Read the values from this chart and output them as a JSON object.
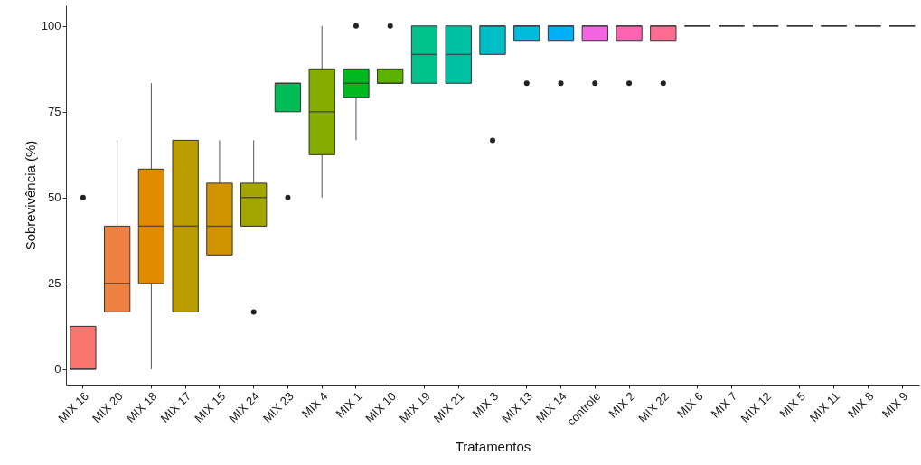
{
  "chart_data": {
    "type": "box",
    "xlabel": "Tratamentos",
    "ylabel": "Sobrevivência (%)",
    "categories": [
      "MIX 16",
      "MIX 20",
      "MIX 18",
      "MIX 17",
      "MIX 15",
      "MIX 24",
      "MIX 23",
      "MIX 4",
      "MIX 1",
      "MIX 10",
      "MIX 19",
      "MIX 21",
      "MIX 3",
      "MIX 13",
      "MIX 14",
      "controle",
      "MIX 2",
      "MIX 22",
      "MIX 6",
      "MIX 7",
      "MIX 12",
      "MIX 5",
      "MIX 11",
      "MIX 8",
      "MIX 9"
    ],
    "colors": [
      "#f8766d",
      "#ed8141",
      "#e08b00",
      "#bb9d00",
      "#cf9400",
      "#a3a500",
      "#00bc56",
      "#85ad00",
      "#00b81f",
      "#5bb300",
      "#00c08b",
      "#00c1a3",
      "#00bfc4",
      "#00bbdb",
      "#00b0f6",
      "#f564e3",
      "#ff64b0",
      "#ff6c91",
      "#333333",
      "#333333",
      "#333333",
      "#333333",
      "#333333",
      "#333333",
      "#333333"
    ],
    "boxes": [
      {
        "low": 0,
        "q1": 0,
        "median": 0,
        "q3": 12.5,
        "high": 12.5,
        "outliers": [
          50
        ]
      },
      {
        "low": 16.7,
        "q1": 16.7,
        "median": 25,
        "q3": 41.7,
        "high": 66.7
      },
      {
        "low": 0,
        "q1": 25,
        "median": 41.7,
        "q3": 58.3,
        "high": 83.3
      },
      {
        "low": 16.7,
        "q1": 16.7,
        "median": 41.7,
        "q3": 66.7,
        "high": 66.7
      },
      {
        "low": 33.3,
        "q1": 33.3,
        "median": 41.7,
        "q3": 54.2,
        "high": 66.7
      },
      {
        "low": 41.7,
        "q1": 41.7,
        "median": 50,
        "q3": 54.2,
        "high": 66.7,
        "outliers": [
          16.7
        ]
      },
      {
        "low": 75,
        "q1": 75,
        "median": 83.3,
        "q3": 83.3,
        "high": 83.3,
        "outliers": [
          50
        ]
      },
      {
        "low": 50,
        "q1": 62.5,
        "median": 75,
        "q3": 87.5,
        "high": 100
      },
      {
        "low": 66.7,
        "q1": 79.2,
        "median": 83.3,
        "q3": 87.5,
        "high": 87.5,
        "outliers": [
          100
        ]
      },
      {
        "low": 83.3,
        "q1": 83.3,
        "median": 83.3,
        "q3": 87.5,
        "high": 87.5,
        "outliers": [
          100
        ]
      },
      {
        "low": 83.3,
        "q1": 83.3,
        "median": 91.7,
        "q3": 100,
        "high": 100
      },
      {
        "low": 83.3,
        "q1": 83.3,
        "median": 91.7,
        "q3": 100,
        "high": 100
      },
      {
        "low": 91.7,
        "q1": 91.7,
        "median": 100,
        "q3": 100,
        "high": 100,
        "outliers": [
          66.7
        ]
      },
      {
        "low": 95.8,
        "q1": 95.8,
        "median": 100,
        "q3": 100,
        "high": 100,
        "outliers": [
          83.3
        ]
      },
      {
        "low": 95.8,
        "q1": 95.8,
        "median": 100,
        "q3": 100,
        "high": 100,
        "outliers": [
          83.3
        ]
      },
      {
        "low": 95.8,
        "q1": 95.8,
        "median": 100,
        "q3": 100,
        "high": 100,
        "outliers": [
          83.3
        ]
      },
      {
        "low": 95.8,
        "q1": 95.8,
        "median": 100,
        "q3": 100,
        "high": 100,
        "outliers": [
          83.3
        ]
      },
      {
        "low": 95.8,
        "q1": 95.8,
        "median": 100,
        "q3": 100,
        "high": 100,
        "outliers": [
          83.3
        ]
      },
      {
        "low": 100,
        "q1": 100,
        "median": 100,
        "q3": 100,
        "high": 100
      },
      {
        "low": 100,
        "q1": 100,
        "median": 100,
        "q3": 100,
        "high": 100
      },
      {
        "low": 100,
        "q1": 100,
        "median": 100,
        "q3": 100,
        "high": 100
      },
      {
        "low": 100,
        "q1": 100,
        "median": 100,
        "q3": 100,
        "high": 100
      },
      {
        "low": 100,
        "q1": 100,
        "median": 100,
        "q3": 100,
        "high": 100
      },
      {
        "low": 100,
        "q1": 100,
        "median": 100,
        "q3": 100,
        "high": 100
      },
      {
        "low": 100,
        "q1": 100,
        "median": 100,
        "q3": 100,
        "high": 100
      }
    ],
    "ylim": [
      -4.5,
      106
    ],
    "yticks": [
      0,
      25,
      50,
      75,
      100
    ],
    "grid": false,
    "legend": false
  }
}
